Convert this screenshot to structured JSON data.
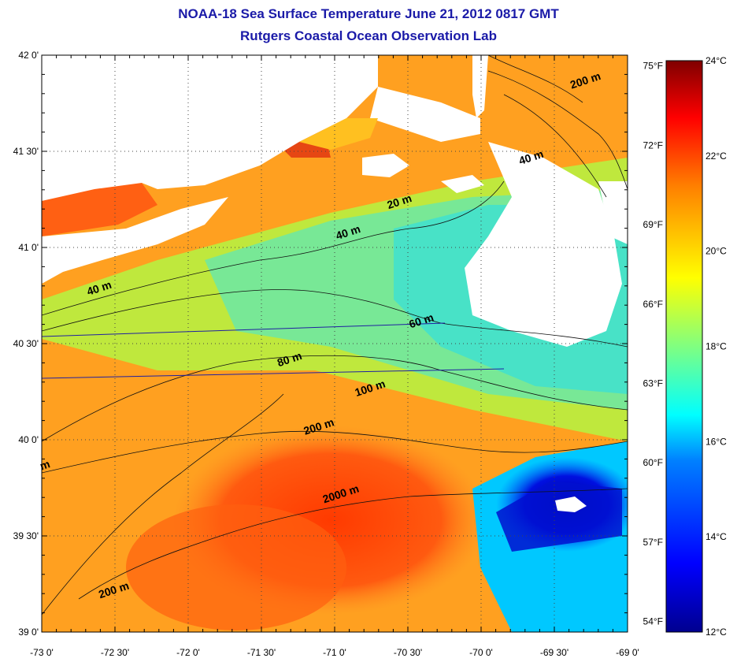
{
  "title": "NOAA-18 Sea Surface Temperature June 21, 2012 0817 GMT",
  "subtitle": "Rutgers Coastal Ocean Observation Lab",
  "map": {
    "lat_labels": [
      "42 0'",
      "41 30'",
      "41 0'",
      "40 30'",
      "40 0'",
      "39 30'",
      "39 0'"
    ],
    "lon_labels": [
      "-73 0'",
      "-72 30'",
      "-72 0'",
      "-71 30'",
      "-71 0'",
      "-70 30'",
      "-70 0'",
      "-69 30'",
      "-69 0'"
    ],
    "lat_range": [
      39.0,
      42.0
    ],
    "lon_range": [
      -73.0,
      -69.0
    ],
    "grid": "dotted",
    "contour_labels": [
      {
        "text": "200 m",
        "lon": -69.28,
        "lat": 41.85
      },
      {
        "text": "40 m",
        "lon": -69.65,
        "lat": 41.45
      },
      {
        "text": "20 m",
        "lon": -70.55,
        "lat": 41.22
      },
      {
        "text": "40 m",
        "lon": -70.9,
        "lat": 41.06
      },
      {
        "text": "40 m",
        "lon": -72.6,
        "lat": 40.77
      },
      {
        "text": "60 m",
        "lon": -70.4,
        "lat": 40.6
      },
      {
        "text": "80 m",
        "lon": -71.3,
        "lat": 40.4
      },
      {
        "text": "100 m",
        "lon": -70.75,
        "lat": 40.25
      },
      {
        "text": "200 m",
        "lon": -71.1,
        "lat": 40.05
      },
      {
        "text": "2000 m",
        "lon": -70.95,
        "lat": 39.7
      },
      {
        "text": "200 m",
        "lon": -72.5,
        "lat": 39.2
      },
      {
        "text": "m",
        "lon": -72.97,
        "lat": 39.85
      }
    ]
  },
  "colorbar": {
    "celsius_labels": [
      "24°C",
      "22°C",
      "20°C",
      "18°C",
      "16°C",
      "14°C",
      "12°C"
    ],
    "fahrenheit_labels": [
      "75°F",
      "72°F",
      "69°F",
      "66°F",
      "63°F",
      "60°F",
      "57°F",
      "54°F"
    ],
    "range_c": [
      12,
      24
    ],
    "colors": [
      "#7f0000",
      "#ff0000",
      "#ff8000",
      "#ffff00",
      "#80ff80",
      "#00ffff",
      "#0080ff",
      "#0000ff",
      "#00008f"
    ]
  },
  "colors": {
    "title": "#1a1aa8",
    "land": "#ffffff",
    "cloud": "#ffffff"
  }
}
